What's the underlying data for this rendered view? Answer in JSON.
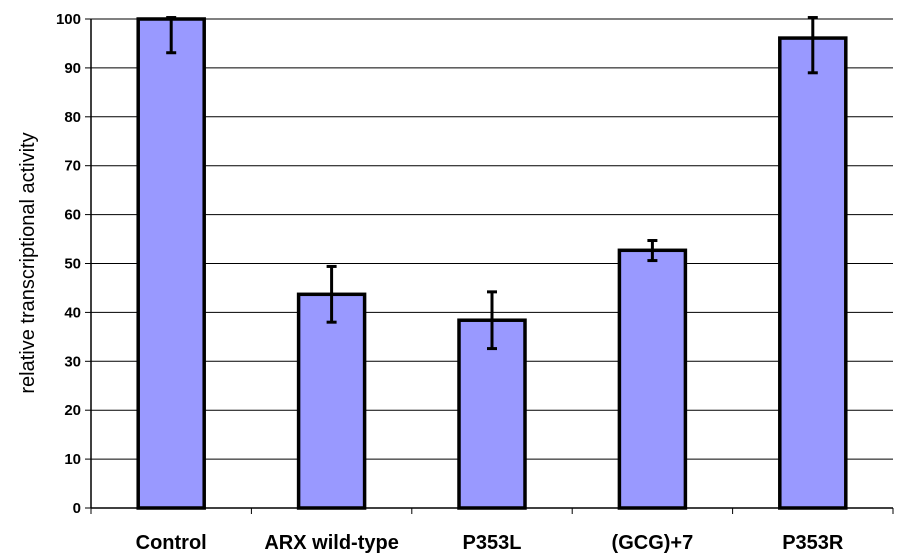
{
  "chart_data": {
    "type": "bar",
    "title": "",
    "xlabel": "",
    "ylabel": "relative transcriptional activity",
    "ylim": [
      0,
      100
    ],
    "yticks": [
      0,
      10,
      20,
      30,
      40,
      50,
      60,
      70,
      80,
      90,
      100
    ],
    "grid": true,
    "categories": [
      "Control",
      "ARX wild-type",
      "P353L",
      "(GCG)+7",
      "P353R"
    ],
    "values": [
      100,
      43.7,
      38.4,
      52.7,
      96.1
    ],
    "error_low": [
      93.1,
      38.0,
      32.6,
      50.6,
      89.0
    ],
    "error_high": [
      100.3,
      49.4,
      44.2,
      54.7,
      100.3
    ],
    "bar_color": "#9999FF",
    "edge_color": "#000000"
  }
}
